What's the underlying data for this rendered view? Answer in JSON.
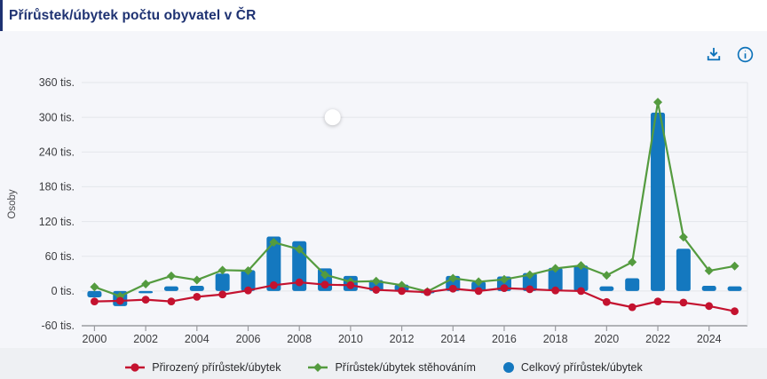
{
  "header": {
    "title": "Přírůstek/úbytek počtu obyvatel v ČR"
  },
  "toolbar": {
    "download_icon": "download-icon",
    "info_icon": "info-icon"
  },
  "chart_data": {
    "type": "bar+line",
    "title": "Přírůstek/úbytek počtu obyvatel v ČR",
    "ylabel": "Osoby",
    "unit": "tis.",
    "ylim": [
      -60,
      360
    ],
    "grid": true,
    "legend_position": "bottom",
    "yticks": [
      {
        "value": 360,
        "label": "360 tis."
      },
      {
        "value": 300,
        "label": "300 tis."
      },
      {
        "value": 240,
        "label": "240 tis."
      },
      {
        "value": 180,
        "label": "180 tis."
      },
      {
        "value": 120,
        "label": "120 tis."
      },
      {
        "value": 60,
        "label": "60 tis."
      },
      {
        "value": 0,
        "label": "0 tis."
      },
      {
        "value": -60,
        "label": "-60 tis."
      }
    ],
    "categories": [
      "2000",
      "2001",
      "2002",
      "2003",
      "2004",
      "2005",
      "2006",
      "2007",
      "2008",
      "2009",
      "2010",
      "2011",
      "2012",
      "2013",
      "2014",
      "2015",
      "2016",
      "2017",
      "2018",
      "2019",
      "2020",
      "2021",
      "2022",
      "2023",
      "2024",
      "2025"
    ],
    "xticks": [
      "2000",
      "2002",
      "2004",
      "2006",
      "2008",
      "2010",
      "2012",
      "2014",
      "2016",
      "2018",
      "2020",
      "2022",
      "2024"
    ],
    "series": [
      {
        "name": "Celkový přírůstek/úbytek",
        "type": "bar",
        "color": "#1478bf",
        "values": [
          -11,
          -26,
          -3,
          8,
          9,
          30,
          36,
          94,
          86,
          39,
          26,
          19,
          11,
          -4,
          26,
          16,
          25,
          31,
          40,
          44,
          8,
          22,
          308,
          73,
          9,
          8
        ]
      },
      {
        "name": "Přírůstek/úbytek stěhováním",
        "type": "line",
        "marker": "diamond",
        "color": "#549b3f",
        "values": [
          7,
          -9,
          12,
          26,
          19,
          36,
          35,
          84,
          72,
          28,
          16,
          17,
          10,
          -1,
          22,
          16,
          20,
          28,
          39,
          44,
          27,
          50,
          326,
          93,
          35,
          43
        ]
      },
      {
        "name": "Přirozený přírůstek/úbytek",
        "type": "line",
        "marker": "circle",
        "color": "#c4122f",
        "values": [
          -18,
          -17,
          -15,
          -18,
          -10,
          -6,
          1,
          10,
          15,
          11,
          10,
          2,
          0,
          -2,
          4,
          0,
          5,
          3,
          1,
          0,
          -19,
          -28,
          -18,
          -20,
          -26,
          -35
        ]
      }
    ],
    "annotations": [
      {
        "type": "highlight-dot",
        "year": 2009.3,
        "value": 300
      }
    ]
  },
  "legend": {
    "items": [
      {
        "label": "Přirozený přírůstek/úbytek",
        "marker": "line-circle",
        "color": "#c4122f"
      },
      {
        "label": "Přírůstek/úbytek stěhováním",
        "marker": "line-diamond",
        "color": "#549b3f"
      },
      {
        "label": "Celkový přírůstek/úbytek",
        "marker": "dot",
        "color": "#1478bf"
      }
    ]
  },
  "colors": {
    "title": "#1e3272",
    "icon_blue": "#0d72b9",
    "bar": "#1478bf",
    "natural_line": "#c4122f",
    "migration_line": "#549b3f",
    "grid": "#e4e6eb",
    "axis": "#9a9ba0",
    "tick_text": "#3c3d40",
    "page_bg": "#f5f6fa",
    "header_bg": "#ffffff"
  }
}
